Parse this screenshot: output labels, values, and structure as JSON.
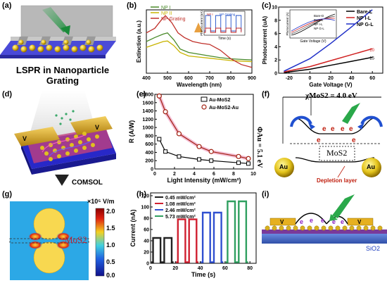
{
  "panels": {
    "a": {
      "label": "(a)",
      "caption_line1": "LSPR in Nanoparticle",
      "caption_line2": "Grating"
    },
    "b": {
      "label": "(b)"
    },
    "c": {
      "label": "(c)"
    },
    "d": {
      "label": "(d)",
      "arrow_label": "COMSOL"
    },
    "e": {
      "label": "(e)"
    },
    "f": {
      "label": "(f)",
      "chi": "χMoS2 = 4.0 eV",
      "phi": "ΦAu = 5.1 eV",
      "mos2": "MoS2",
      "au_left": "Au",
      "au_right": "Au",
      "depletion": "Depletion layer",
      "e": "e"
    },
    "g": {
      "label": "(g)",
      "scale_title": "×10⁵ V/m",
      "scale_ticks": [
        "2.0",
        "1.5",
        "1.0",
        "0.5",
        "0.0"
      ],
      "mos2": "MoS2"
    },
    "h": {
      "label": "(h)"
    },
    "i": {
      "label": "(i)",
      "substrate": "SiO2"
    }
  },
  "chart_data": [
    {
      "panel": "b",
      "type": "line",
      "xlabel": "Wavelength (nm)",
      "ylabel": "Extinction (a.u.)",
      "xlim": [
        400,
        900
      ],
      "xticks": [
        400,
        500,
        600,
        700,
        800,
        900
      ],
      "legend": [
        "NP I",
        "NP II",
        "NP Grating"
      ],
      "series": [
        {
          "name": "NP I",
          "color": "#4a8a2a",
          "x": [
            400,
            440,
            480,
            500,
            530,
            560,
            600,
            650,
            700,
            750,
            800,
            850,
            900
          ],
          "y": [
            0.55,
            0.62,
            0.68,
            0.7,
            0.58,
            0.42,
            0.36,
            0.33,
            0.3,
            0.27,
            0.25,
            0.24,
            0.23
          ]
        },
        {
          "name": "NP II",
          "color": "#c8b400",
          "x": [
            400,
            440,
            480,
            500,
            530,
            560,
            600,
            650,
            700,
            750,
            800,
            850,
            900
          ],
          "y": [
            0.45,
            0.5,
            0.55,
            0.56,
            0.48,
            0.36,
            0.3,
            0.28,
            0.26,
            0.24,
            0.22,
            0.21,
            0.2
          ]
        },
        {
          "name": "NP Grating",
          "color": "#c0302a",
          "x": [
            400,
            440,
            470,
            490,
            520,
            550,
            580,
            620,
            660,
            700,
            750,
            800,
            850,
            900
          ],
          "y": [
            0.7,
            0.78,
            0.92,
            1.0,
            0.88,
            0.7,
            0.62,
            0.55,
            0.52,
            0.5,
            0.4,
            0.25,
            0.15,
            0.1
          ]
        }
      ],
      "inset": {
        "legend": [
          "NP I",
          "NP Grating"
        ],
        "xlabel": "Time (s)",
        "ylabel": "Photocurrent (nA)",
        "xticks": [
          0,
          10,
          20
        ],
        "yticks": [
          0,
          10,
          20
        ]
      }
    },
    {
      "panel": "c",
      "type": "line",
      "xlabel": "Gate Voltage (V)",
      "ylabel": "Photocurrent (uA)",
      "xlim": [
        -30,
        70
      ],
      "xticks": [
        -20,
        0,
        20,
        40,
        60
      ],
      "ylim": [
        0,
        10
      ],
      "yticks": [
        0,
        2,
        4,
        6,
        8,
        10
      ],
      "legend": [
        "Bare-L",
        "NP I-L",
        "NP G-L"
      ],
      "series": [
        {
          "name": "Bare-L",
          "color": "#000000",
          "x": [
            -25,
            0,
            20,
            40,
            60
          ],
          "y": [
            0.1,
            0.6,
            1.2,
            1.8,
            2.4
          ]
        },
        {
          "name": "NP I-L",
          "color": "#d02020",
          "x": [
            -25,
            0,
            20,
            40,
            60
          ],
          "y": [
            0.2,
            1.0,
            1.9,
            2.8,
            3.7
          ]
        },
        {
          "name": "NP G-L",
          "color": "#2030c8",
          "x": [
            -25,
            0,
            20,
            40,
            60
          ],
          "y": [
            0.3,
            2.2,
            4.5,
            7.0,
            9.6
          ]
        }
      ],
      "inset": {
        "legend": [
          "Bare-D",
          "Bare-L",
          "NP I-L",
          "NP G-L"
        ],
        "xlabel": "Gate Voltage (V)",
        "ylabel": "Photocurrent (A)"
      },
      "annotations": [
        "~10",
        "~15"
      ]
    },
    {
      "panel": "e",
      "type": "line",
      "xlabel": "Light Intensity (mW/cm²)",
      "ylabel": "R (A/W)",
      "xlim": [
        0,
        10
      ],
      "xticks": [
        0,
        2,
        4,
        6,
        8,
        10
      ],
      "ylim": [
        0,
        1800
      ],
      "yticks": [
        0,
        200,
        400,
        600,
        800,
        1000,
        1200,
        1400,
        1600,
        1800
      ],
      "legend": [
        "Au-MoS2",
        "Au-MoS2-Au"
      ],
      "series": [
        {
          "name": "Au-MoS2",
          "color": "#000000",
          "x": [
            0.45,
            1.08,
            2.46,
            4.5,
            5.73,
            8.5,
            9.5
          ],
          "y": [
            720,
            420,
            300,
            230,
            200,
            150,
            130
          ]
        },
        {
          "name": "Au-MoS2-Au",
          "color": "#a02010",
          "x": [
            0.45,
            1.08,
            2.46,
            4.5,
            5.73,
            8.5,
            9.5
          ],
          "y": [
            1760,
            1380,
            850,
            540,
            420,
            300,
            250
          ]
        }
      ]
    },
    {
      "panel": "h",
      "type": "line",
      "xlabel": "Time (s)",
      "ylabel": "Current (nA)",
      "xlim": [
        0,
        85
      ],
      "xticks": [
        0,
        20,
        40,
        60,
        80
      ],
      "ylim": [
        0,
        125
      ],
      "yticks": [
        0,
        20,
        40,
        60,
        80,
        100,
        120
      ],
      "legend": [
        "0.45 mW/cm²",
        "1.08 mW/cm²",
        "2.46 mW/cm²",
        "5.73 mW/cm²"
      ],
      "series": [
        {
          "name": "0.45 mW/cm²",
          "color": "#222222",
          "on_level": 45,
          "pulses": [
            [
              2,
              8
            ],
            [
              11,
              17
            ]
          ]
        },
        {
          "name": "1.08 mW/cm²",
          "color": "#d02030",
          "on_level": 78,
          "pulses": [
            [
              22,
              28
            ],
            [
              31,
              37
            ]
          ]
        },
        {
          "name": "2.46 mW/cm²",
          "color": "#3050d0",
          "on_level": 90,
          "pulses": [
            [
              42,
              48
            ],
            [
              51,
              57
            ]
          ]
        },
        {
          "name": "5.73 mW/cm²",
          "color": "#30a060",
          "on_level": 110,
          "pulses": [
            [
              62,
              68
            ],
            [
              71,
              77
            ]
          ]
        }
      ]
    }
  ]
}
